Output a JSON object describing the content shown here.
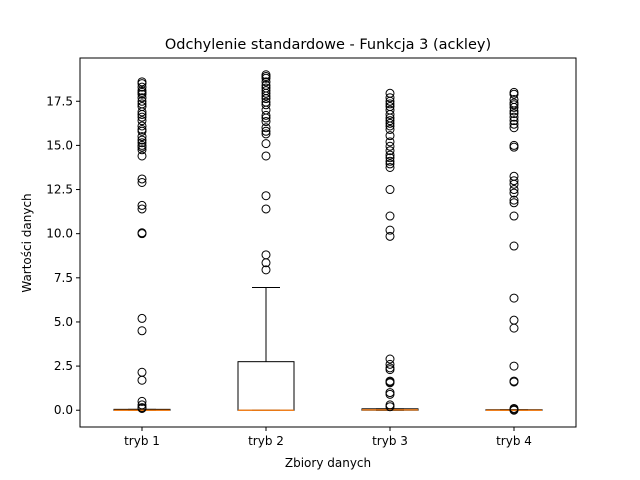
{
  "chart_data": {
    "type": "boxplot",
    "title": "Odchylenie standardowe - Funkcja 3 (ackley)",
    "xlabel": "Zbiory danych",
    "ylabel": "Wartości danych",
    "categories": [
      "tryb 1",
      "tryb 2",
      "tryb 3",
      "tryb 4"
    ],
    "ylim": [
      -0.95,
      19.95
    ],
    "yticks": [
      0.0,
      2.5,
      5.0,
      7.5,
      10.0,
      12.5,
      15.0,
      17.5
    ],
    "ytick_labels": [
      "0.0",
      "2.5",
      "5.0",
      "7.5",
      "10.0",
      "12.5",
      "15.0",
      "17.5"
    ],
    "grid": false,
    "boxes": [
      {
        "category": "tryb 1",
        "q1": 0.0,
        "median": 0.0,
        "q3": 0.05,
        "whisker_low": 0.0,
        "whisker_high": 0.05,
        "outliers": [
          18.6,
          18.5,
          18.3,
          18.1,
          18.0,
          17.9,
          17.7,
          17.5,
          17.35,
          17.2,
          16.9,
          16.75,
          16.6,
          16.4,
          16.1,
          15.9,
          15.8,
          15.5,
          15.3,
          15.15,
          15.0,
          14.9,
          14.75,
          14.4,
          13.1,
          12.9,
          11.6,
          11.4,
          10.05,
          10.0,
          5.2,
          4.5,
          2.15,
          1.7,
          0.5,
          0.3,
          0.15,
          0.1
        ]
      },
      {
        "category": "tryb 2",
        "q1": 0.0,
        "median": 0.0,
        "q3": 2.75,
        "whisker_low": 0.0,
        "whisker_high": 6.95,
        "outliers": [
          19.0,
          18.9,
          18.8,
          18.6,
          18.4,
          18.25,
          18.1,
          17.95,
          17.8,
          17.65,
          17.45,
          17.3,
          17.0,
          16.7,
          16.55,
          16.35,
          16.0,
          15.8,
          15.65,
          15.1,
          14.4,
          12.15,
          11.4,
          8.8,
          8.35,
          7.95
        ]
      },
      {
        "category": "tryb 3",
        "q1": 0.0,
        "median": 0.02,
        "q3": 0.08,
        "whisker_low": 0.0,
        "whisker_high": 0.08,
        "outliers": [
          17.95,
          17.7,
          17.5,
          17.35,
          17.2,
          17.0,
          16.75,
          16.55,
          16.4,
          16.25,
          16.1,
          15.9,
          15.55,
          15.2,
          14.95,
          14.7,
          14.45,
          14.3,
          14.1,
          13.95,
          13.75,
          12.5,
          11.0,
          10.2,
          9.85,
          2.9,
          2.6,
          2.4,
          2.3,
          1.65,
          1.6,
          1.55,
          1.0,
          0.9,
          0.3,
          0.2
        ]
      },
      {
        "category": "tryb 4",
        "q1": 0.0,
        "median": 0.0,
        "q3": 0.03,
        "whisker_low": 0.0,
        "whisker_high": 0.03,
        "outliers": [
          18.0,
          17.9,
          17.6,
          17.4,
          17.3,
          17.15,
          16.95,
          16.8,
          16.6,
          16.4,
          16.2,
          16.0,
          15.0,
          14.9,
          13.25,
          13.0,
          12.8,
          12.5,
          12.3,
          11.9,
          11.75,
          11.0,
          9.3,
          6.35,
          5.1,
          4.65,
          2.5,
          1.65,
          1.6,
          0.1,
          0.05,
          0.0
        ]
      }
    ],
    "colors": {
      "box": "#000000",
      "median": "#ff7f0e",
      "outlier": "#000000"
    }
  }
}
